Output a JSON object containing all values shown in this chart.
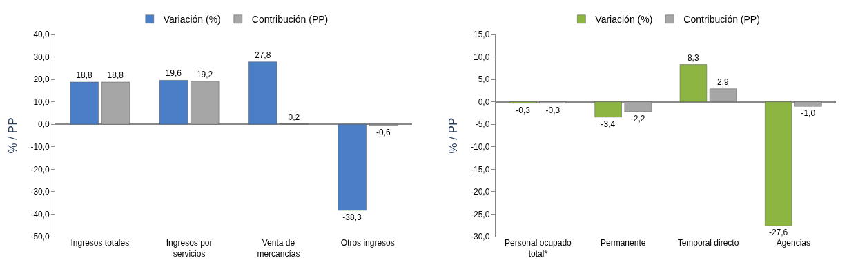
{
  "chart_data": [
    {
      "type": "bar",
      "ylabel": "% / PP",
      "categories": [
        "Ingresos totales",
        "Ingresos por servicios",
        "Venta de mercancías",
        "Otros ingresos"
      ],
      "series": [
        {
          "name": "Variación (%)",
          "color": "#4a7fc8",
          "values": [
            18.8,
            19.6,
            27.8,
            -38.3
          ],
          "value_labels": [
            "18,8",
            "19,6",
            "27,8",
            "-38,3"
          ]
        },
        {
          "name": "Contribución (PP)",
          "color": "#a6a6a6",
          "values": [
            18.8,
            19.2,
            0.2,
            -0.6
          ],
          "value_labels": [
            "18,8",
            "19,2",
            "0,2",
            "-0,6"
          ]
        }
      ],
      "ylim": [
        -50,
        40
      ],
      "yticks": [
        {
          "value": 40,
          "label": "40,0"
        },
        {
          "value": 30,
          "label": "30,0"
        },
        {
          "value": 20,
          "label": "20,0"
        },
        {
          "value": 10,
          "label": "10,0"
        },
        {
          "value": 0,
          "label": "0,0"
        },
        {
          "value": -10,
          "label": "-10,0"
        },
        {
          "value": -20,
          "label": "-20,0"
        },
        {
          "value": -30,
          "label": "-30,0"
        },
        {
          "value": -40,
          "label": "-40,0"
        },
        {
          "value": -50,
          "label": "-50,0"
        }
      ],
      "legend": "top"
    },
    {
      "type": "bar",
      "ylabel": "% / PP",
      "categories": [
        "Personal ocupado total*",
        "Permanente",
        "Temporal directo",
        "Agencias"
      ],
      "series": [
        {
          "name": "Variación (%)",
          "color": "#8db542",
          "values": [
            -0.3,
            -3.4,
            8.3,
            -27.6
          ],
          "value_labels": [
            "-0,3",
            "-3,4",
            "8,3",
            "-27,6"
          ]
        },
        {
          "name": "Contribución (PP)",
          "color": "#a6a6a6",
          "values": [
            -0.3,
            -2.2,
            2.9,
            -1.0
          ],
          "value_labels": [
            "-0,3",
            "-2,2",
            "2,9",
            "-1,0"
          ]
        }
      ],
      "ylim": [
        -30,
        15
      ],
      "yticks": [
        {
          "value": 15,
          "label": "15,0"
        },
        {
          "value": 10,
          "label": "10,0"
        },
        {
          "value": 5,
          "label": "5,0"
        },
        {
          "value": 0,
          "label": "0,0"
        },
        {
          "value": -5,
          "label": "-5,0"
        },
        {
          "value": -10,
          "label": "-10,0"
        },
        {
          "value": -15,
          "label": "-15,0"
        },
        {
          "value": -20,
          "label": "-20,0"
        },
        {
          "value": -25,
          "label": "-25,0"
        },
        {
          "value": -30,
          "label": "-30,0"
        }
      ],
      "legend": "top"
    }
  ]
}
